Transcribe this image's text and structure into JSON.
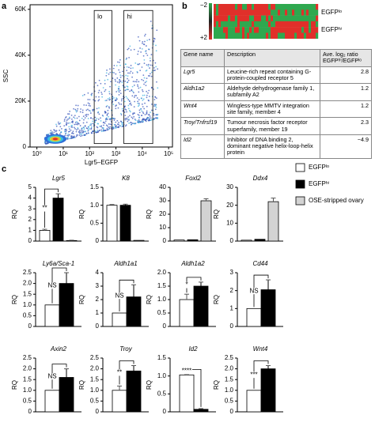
{
  "panel_labels": [
    "a",
    "b",
    "c"
  ],
  "chart_data": [
    {
      "type": "scatter",
      "xlabel": "Lgr5–EGFP",
      "ylabel": "SSC",
      "log_x": true,
      "xlim": [
        0.55,
        140000
      ],
      "ylim": [
        0,
        62000
      ],
      "xticks": [
        {
          "value": 1,
          "label": "10⁰"
        },
        {
          "value": 10,
          "label": "10¹"
        },
        {
          "value": 100,
          "label": "10²"
        },
        {
          "value": 1000,
          "label": "10³"
        },
        {
          "value": 10000,
          "label": "10⁴"
        },
        {
          "value": 100000,
          "label": "10⁵"
        }
      ],
      "yticks": [
        0,
        {
          "value": 20000,
          "label": "20K"
        },
        {
          "value": 40000,
          "label": "40K"
        },
        {
          "value": 60000,
          "label": "60K"
        }
      ],
      "gates": [
        "lo",
        "hi"
      ]
    },
    {
      "type": "bar",
      "title": "Lgr5",
      "ylabel": "RQ",
      "values": [
        1,
        4.0,
        0.05
      ],
      "errors": [
        0.1,
        0.4,
        0.03
      ],
      "ylim": [
        0,
        5
      ],
      "yticks": [
        0,
        1,
        2,
        3,
        4,
        5
      ],
      "annotation": "**"
    },
    {
      "type": "bar",
      "title": "K8",
      "ylabel": "RQ",
      "values": [
        1.0,
        1.0,
        0.02
      ],
      "errors": [
        0.02,
        0.03,
        null
      ],
      "ylim": [
        0,
        1.5
      ],
      "yticks": [
        0,
        0.5,
        {
          "value": 1,
          "label": "1.0"
        },
        1.5
      ]
    },
    {
      "type": "bar",
      "title": "Foxl2",
      "ylabel": "RQ",
      "values": [
        0.8,
        1.0,
        30
      ],
      "errors": [
        null,
        null,
        1.5
      ],
      "ylim": [
        0,
        40
      ],
      "yticks": [
        0,
        10,
        20,
        30,
        40
      ]
    },
    {
      "type": "bar",
      "title": "Ddx4",
      "ylabel": "RQ",
      "values": [
        0.5,
        1.0,
        22
      ],
      "errors": [
        null,
        null,
        2
      ],
      "ylim": [
        0,
        30
      ],
      "yticks": [
        0,
        10,
        20,
        30
      ]
    },
    {
      "type": "bar",
      "title": "Ly6a/Sca-1",
      "ylabel": "RQ",
      "values": [
        1,
        2.0
      ],
      "errors": [
        null,
        0.5
      ],
      "ylim": [
        0,
        2.5
      ],
      "yticks": [
        0,
        0.5,
        {
          "value": 1,
          "label": "1.0"
        },
        1.5,
        {
          "value": 2,
          "label": "2.0"
        },
        2.5
      ],
      "annotation": "NS"
    },
    {
      "type": "bar",
      "title": "Aldh1a1",
      "ylabel": "RQ",
      "values": [
        1,
        2.2
      ],
      "errors": [
        null,
        0.9
      ],
      "ylim": [
        0,
        4
      ],
      "yticks": [
        0,
        1,
        2,
        3,
        4
      ],
      "annotation": "NS"
    },
    {
      "type": "bar",
      "title": "Aldh1a2",
      "ylabel": "RQ",
      "values": [
        1,
        1.5
      ],
      "errors": [
        0.2,
        0.15
      ],
      "ylim": [
        0,
        2
      ],
      "yticks": [
        0,
        0.5,
        {
          "value": 1,
          "label": "1.0"
        },
        1.5,
        {
          "value": 2,
          "label": "2.0"
        }
      ],
      "annotation": "*"
    },
    {
      "type": "bar",
      "title": "Cd44",
      "ylabel": "RQ",
      "values": [
        1,
        2.05
      ],
      "errors": [
        null,
        0.55
      ],
      "ylim": [
        0,
        3
      ],
      "yticks": [
        0,
        1,
        2,
        3
      ],
      "annotation": "NS"
    },
    {
      "type": "bar",
      "title": "Axin2",
      "ylabel": "RQ",
      "values": [
        1,
        1.6
      ],
      "errors": [
        null,
        0.4
      ],
      "ylim": [
        0,
        2.5
      ],
      "yticks": [
        0,
        0.5,
        {
          "value": 1,
          "label": "1.0"
        },
        1.5,
        {
          "value": 2,
          "label": "2.0"
        },
        2.5
      ],
      "annotation": "NS"
    },
    {
      "type": "bar",
      "title": "Troy",
      "ylabel": "RQ",
      "values": [
        1,
        1.9
      ],
      "errors": [
        0.2,
        0.25
      ],
      "ylim": [
        0,
        2.5
      ],
      "yticks": [
        0,
        0.5,
        {
          "value": 1,
          "label": "1.0"
        },
        1.5,
        {
          "value": 2,
          "label": "2.0"
        },
        2.5
      ],
      "annotation": "**"
    },
    {
      "type": "bar",
      "title": "Id2",
      "ylabel": "RQ",
      "values": [
        1.03,
        0.07
      ],
      "errors": [
        0.02,
        0.02
      ],
      "ylim": [
        0,
        1.5
      ],
      "yticks": [
        0,
        0.5,
        {
          "value": 1,
          "label": "1.0"
        },
        1.5
      ],
      "annotation": "****"
    },
    {
      "type": "bar",
      "title": "Wnt4",
      "ylabel": "RQ",
      "values": [
        1,
        2.0
      ],
      "errors": [
        null,
        0.15
      ],
      "ylim": [
        0,
        2.5
      ],
      "yticks": [
        0,
        0.5,
        {
          "value": 1,
          "label": "1.0"
        },
        1.5,
        {
          "value": 2,
          "label": "2.0"
        },
        2.5
      ],
      "annotation": "***"
    }
  ],
  "legend": [
    {
      "name": "EGFPˡᵒ",
      "color": "#ffffff"
    },
    {
      "name": "EGFPʰⁱ",
      "color": "#000000"
    },
    {
      "name": "OSE-stripped ovary",
      "color": "#d3d3d3"
    }
  ],
  "heatmap": {
    "scale_labels": [
      "−2",
      "+2"
    ],
    "rows": [
      "EGFPˡᵒ",
      "EGFPʰⁱ"
    ]
  },
  "table": {
    "header": [
      "Gene name",
      "Description",
      "Ave. log₂ ratio EGFPʰⁱ/EGFPˡᵒ"
    ],
    "rows": [
      [
        "Lgr5",
        "Leucine-rich repeat containing G-protein-coupled receptor 5",
        "2.8"
      ],
      [
        "Aldh1a2",
        "Aldehyde dehydrogenase family 1, subfamily A2",
        "1.2"
      ],
      [
        "Wnt4",
        "Wingless-type MMTV integration site family, member 4",
        "1.2"
      ],
      [
        "Troy/Tnfrsf19",
        "Tumour necrosis factor receptor superfamily, member 19",
        "2.3"
      ],
      [
        "Id2",
        "Inhibitor of DNA binding 2, dominant negative helix-loop-helix protein",
        "−4.9"
      ]
    ]
  }
}
